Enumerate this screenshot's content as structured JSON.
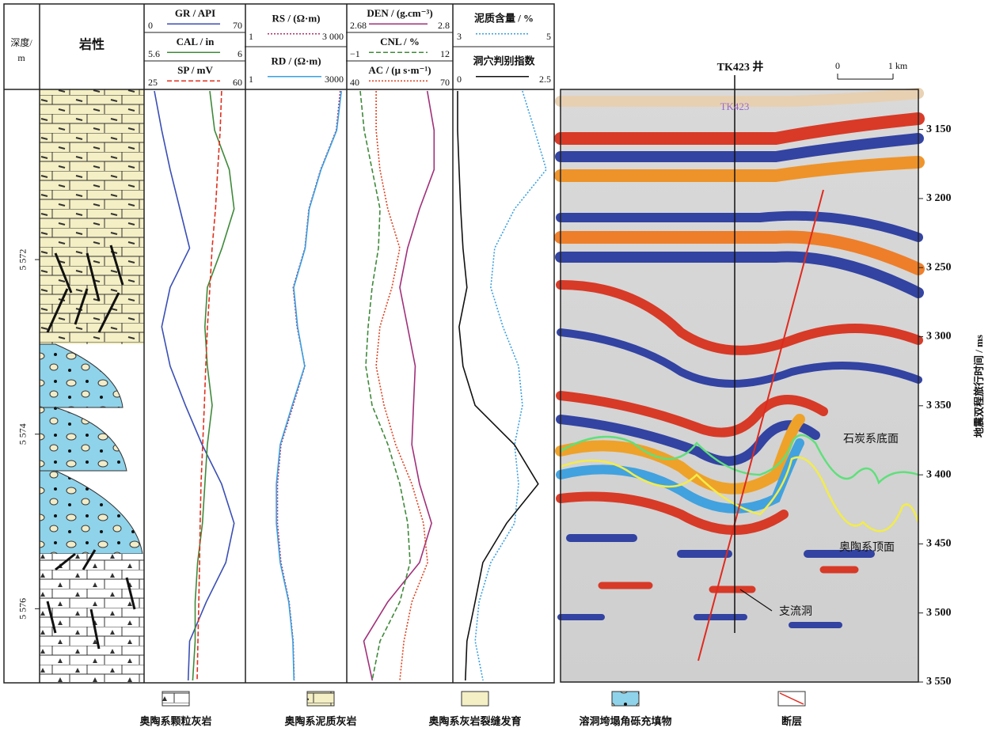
{
  "header": {
    "depth_label": [
      "深度/",
      "m"
    ],
    "lithology_label": "岩性"
  },
  "tracks": [
    {
      "curves": [
        {
          "name": "GR / API",
          "min": 0,
          "max": 70,
          "color": "#3a4fb5",
          "style": "solid",
          "log": false,
          "values": [
            5.7,
            11,
            17,
            24,
            31,
            17,
            11,
            17,
            28,
            40,
            54,
            63,
            57,
            43,
            31,
            30
          ]
        },
        {
          "name": "CAL / in",
          "min": 5.6,
          "max": 6,
          "color": "#3f8a3a",
          "style": "solid",
          "log": false,
          "values": [
            5.86,
            5.88,
            5.94,
            5.96,
            5.91,
            5.85,
            5.84,
            5.85,
            5.87,
            5.85,
            5.84,
            5.83,
            5.81,
            5.8,
            5.8,
            5.79
          ]
        },
        {
          "name": "SP / mV",
          "min": 25,
          "max": 60,
          "color": "#e0301e",
          "style": "dashed",
          "log": false,
          "values": [
            52.0,
            51.5,
            50.6,
            49.8,
            48.6,
            47.8,
            46.9,
            46.3,
            45.8,
            45.2,
            44.6,
            44.3,
            44.1,
            43.8,
            43.5,
            43.2
          ]
        }
      ]
    },
    {
      "curves": [
        {
          "name": "RS / (Ω·m)",
          "min": 1,
          "max": {
            "value": 3000,
            "label": "3 000"
          },
          "color": "#b0306a",
          "style": "dotted",
          "log": true,
          "values": [
            2000,
            1450,
            405,
            155,
            112,
            43,
            59,
            112,
            43,
            16,
            12,
            12,
            16,
            31,
            43,
            47
          ]
        },
        {
          "name": "RD / (Ω·m)",
          "min": 1,
          "max": 3000,
          "color": "#3aa0e0",
          "style": "solid",
          "log": true,
          "values": [
            2200,
            1500,
            420,
            160,
            115,
            45,
            62,
            110,
            40,
            15,
            11,
            11,
            15,
            30,
            42,
            46
          ]
        }
      ]
    },
    {
      "curves": [
        {
          "name": "DEN / (g.cm⁻³)",
          "min": 2.68,
          "max": 2.8,
          "color": "#a0307a",
          "style": "solid",
          "log": false,
          "values": [
            2.772,
            2.78,
            2.78,
            2.763,
            2.749,
            2.74,
            2.749,
            2.758,
            2.756,
            2.754,
            2.763,
            2.777,
            2.763,
            2.726,
            2.698,
            2.708
          ]
        },
        {
          "name": "CNL / %",
          "min": {
            "value": -1,
            "label": "−1"
          },
          "max": 12,
          "color": "#3f8a3a",
          "style": "dashed",
          "log": false,
          "values": [
            0.5,
            1.0,
            2.0,
            3.0,
            2.8,
            2.0,
            1.5,
            1.2,
            2.0,
            4.0,
            5.5,
            6.5,
            6.8,
            5.5,
            3.0,
            2.0
          ]
        },
        {
          "name": "AC / (μ s·m⁻¹)",
          "min": 40,
          "max": 70,
          "color": "#e0401e",
          "style": "dotted",
          "log": false,
          "values": [
            48.1,
            48.1,
            49.2,
            51.5,
            55.0,
            52.7,
            49.2,
            48.1,
            50.4,
            53.8,
            58.5,
            61.9,
            63.1,
            58.5,
            56.2,
            55.0
          ]
        }
      ]
    },
    {
      "curves": [
        {
          "name": "泥质含量 / %",
          "min": 3,
          "max": 5,
          "color": "#3aa0e0",
          "style": "dotted",
          "log": false,
          "values": [
            4.38,
            4.63,
            4.87,
            4.22,
            3.81,
            3.73,
            3.98,
            4.3,
            4.38,
            4.22,
            4.3,
            4.22,
            3.73,
            3.49,
            3.41,
            3.57
          ]
        },
        {
          "name": "洞穴判别指数",
          "min": 0,
          "max": 2.5,
          "color": "#111111",
          "style": "solid",
          "log": false,
          "values": [
            0.06,
            0.06,
            0.1,
            0.14,
            0.2,
            0.3,
            0.1,
            0.2,
            0.51,
            1.52,
            2.13,
            1.32,
            0.71,
            0.51,
            0.3,
            0.26
          ]
        }
      ]
    }
  ],
  "depth_range": [
    5570.05,
    5576.84
  ],
  "depth_ticks": [
    {
      "value": 5572,
      "label": "5 572"
    },
    {
      "value": 5574,
      "label": "5 574"
    },
    {
      "value": 5576,
      "label": "5 576"
    }
  ],
  "seismic": {
    "well_label": "TK423 井",
    "well_ghost": "TK423",
    "scale_bar": {
      "start": "0",
      "end": "1 km"
    },
    "time_axis_title": "地震双程旅行时间 / ms",
    "time_range": [
      3121,
      3550
    ],
    "time_ticks": [
      {
        "value": 3150,
        "label": "3 150"
      },
      {
        "value": 3200,
        "label": "3 200"
      },
      {
        "value": 3250,
        "label": "3 250"
      },
      {
        "value": 3300,
        "label": "3 300"
      },
      {
        "value": 3350,
        "label": "3 350"
      },
      {
        "value": 3400,
        "label": "3 400"
      },
      {
        "value": 3450,
        "label": "3 450"
      },
      {
        "value": 3500,
        "label": "3 500"
      },
      {
        "value": 3550,
        "label": "3 550"
      }
    ],
    "annotations": [
      "石炭系底面",
      "奥陶系顶面",
      "支流洞"
    ]
  },
  "legend": [
    "奥陶系颗粒灰岩",
    "奥陶系泥质灰岩",
    "奥陶系灰岩裂缝发育",
    "溶洞垮塌角砾充填物",
    "断层"
  ]
}
